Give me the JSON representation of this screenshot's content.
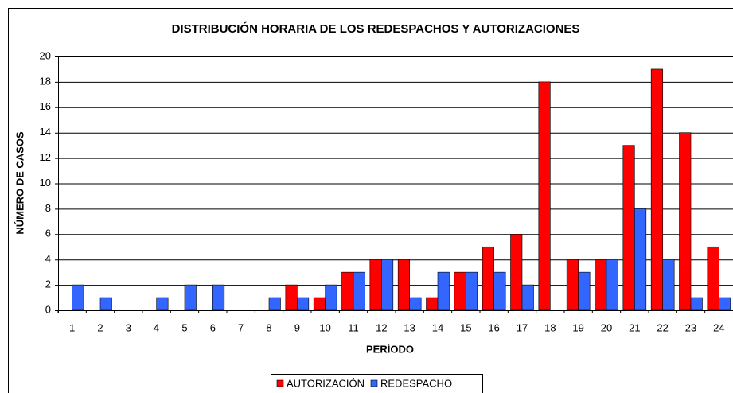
{
  "chart_data": {
    "type": "bar",
    "title": "DISTRIBUCIÓN HORARIA DE LOS REDESPACHOS Y AUTORIZACIONES",
    "x_label": "PERÍODO",
    "y_label": "NÚMERO DE CASOS",
    "categories": [
      "1",
      "2",
      "3",
      "4",
      "5",
      "6",
      "7",
      "8",
      "9",
      "10",
      "11",
      "12",
      "13",
      "14",
      "15",
      "16",
      "17",
      "18",
      "19",
      "20",
      "21",
      "22",
      "23",
      "24"
    ],
    "series": [
      {
        "name": "AUTORIZACIÓN",
        "color": "#ff0000",
        "values": [
          0,
          0,
          0,
          0,
          0,
          0,
          0,
          0,
          2,
          1,
          3,
          4,
          4,
          1,
          3,
          5,
          6,
          18,
          4,
          4,
          13,
          19,
          14,
          5
        ]
      },
      {
        "name": "REDESPACHO",
        "color": "#3366ff",
        "values": [
          2,
          1,
          0,
          1,
          2,
          2,
          0,
          1,
          1,
          2,
          3,
          4,
          1,
          3,
          3,
          3,
          2,
          0,
          3,
          4,
          8,
          4,
          1,
          1
        ]
      }
    ],
    "ylim": [
      0,
      20
    ],
    "yticks": [
      0,
      2,
      4,
      6,
      8,
      10,
      12,
      14,
      16,
      18,
      20
    ],
    "grid": true,
    "legend": "bottom"
  }
}
